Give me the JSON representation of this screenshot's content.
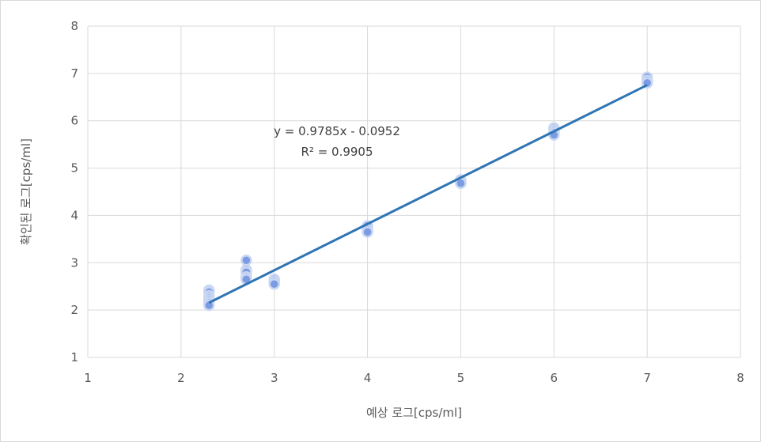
{
  "chart_data": {
    "type": "scatter",
    "title": "",
    "xlabel": "예상 로그[cps/ml]",
    "ylabel": "확인된 로그[cps/ml]",
    "xlim": [
      1,
      8
    ],
    "ylim": [
      1,
      8
    ],
    "x_ticks": [
      "1",
      "2",
      "3",
      "4",
      "5",
      "6",
      "7",
      "8"
    ],
    "y_ticks": [
      "1",
      "2",
      "3",
      "4",
      "5",
      "6",
      "7",
      "8"
    ],
    "grid": true,
    "legend": "none",
    "colors": {
      "points": "#7b9be2",
      "point_edge": "#c9d7f3",
      "trendline": "#2e75b6",
      "grid": "#d9d9d9"
    },
    "series": [
      {
        "points": [
          [
            2.3,
            2.42
          ],
          [
            2.3,
            2.38
          ],
          [
            2.3,
            2.3
          ],
          [
            2.3,
            2.25
          ],
          [
            2.3,
            2.2
          ],
          [
            2.3,
            2.15
          ],
          [
            2.3,
            2.1
          ],
          [
            2.7,
            3.05
          ],
          [
            2.7,
            2.85
          ],
          [
            2.7,
            2.8
          ],
          [
            2.7,
            2.7
          ],
          [
            2.7,
            2.65
          ],
          [
            3.0,
            2.65
          ],
          [
            3.0,
            2.6
          ],
          [
            3.0,
            2.55
          ],
          [
            4.0,
            3.78
          ],
          [
            4.0,
            3.7
          ],
          [
            4.0,
            3.65
          ],
          [
            5.0,
            4.75
          ],
          [
            5.0,
            4.7
          ],
          [
            5.0,
            4.68
          ],
          [
            6.0,
            5.85
          ],
          [
            6.0,
            5.8
          ],
          [
            6.0,
            5.75
          ],
          [
            6.0,
            5.7
          ],
          [
            7.0,
            6.92
          ],
          [
            7.0,
            6.85
          ],
          [
            7.0,
            6.8
          ]
        ]
      }
    ],
    "trendline": {
      "slope": 0.9785,
      "intercept": -0.0952,
      "x_range": [
        2.3,
        7.0
      ],
      "equation_label": "y = 0.9785x - 0.0952",
      "r2_label": "R² = 0.9905"
    }
  }
}
